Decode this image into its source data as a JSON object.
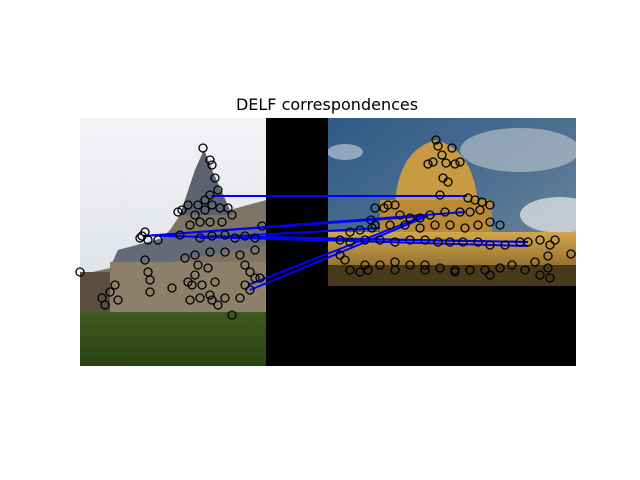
{
  "chart_data": {
    "type": "image",
    "title": "DELF correspondences",
    "axis": "off",
    "images": [
      {
        "name": "left",
        "subject": "gothic stone building with tall pointed roof, overcast sky, lawn in front"
      },
      {
        "name": "right",
        "subject": "domed library rotunda lit warm yellow under blue sky with clouds"
      }
    ],
    "line_color": "#0000ff",
    "keypoint_color": "#000000",
    "keypoints_left": [
      [
        203,
        148
      ],
      [
        210,
        160
      ],
      [
        212,
        165
      ],
      [
        215,
        178
      ],
      [
        218,
        190
      ],
      [
        210,
        195
      ],
      [
        205,
        200
      ],
      [
        198,
        205
      ],
      [
        188,
        205
      ],
      [
        182,
        210
      ],
      [
        178,
        212
      ],
      [
        195,
        215
      ],
      [
        205,
        210
      ],
      [
        212,
        205
      ],
      [
        220,
        208
      ],
      [
        228,
        208
      ],
      [
        232,
        215
      ],
      [
        222,
        222
      ],
      [
        210,
        222
      ],
      [
        200,
        222
      ],
      [
        190,
        225
      ],
      [
        145,
        232
      ],
      [
        142,
        236
      ],
      [
        140,
        238
      ],
      [
        148,
        240
      ],
      [
        158,
        240
      ],
      [
        180,
        235
      ],
      [
        200,
        238
      ],
      [
        212,
        236
      ],
      [
        225,
        235
      ],
      [
        235,
        238
      ],
      [
        245,
        236
      ],
      [
        255,
        238
      ],
      [
        262,
        226
      ],
      [
        255,
        250
      ],
      [
        240,
        255
      ],
      [
        225,
        252
      ],
      [
        210,
        252
      ],
      [
        195,
        255
      ],
      [
        185,
        258
      ],
      [
        145,
        260
      ],
      [
        148,
        272
      ],
      [
        150,
        280
      ],
      [
        115,
        285
      ],
      [
        110,
        292
      ],
      [
        118,
        300
      ],
      [
        102,
        298
      ],
      [
        105,
        305
      ],
      [
        80,
        272
      ],
      [
        150,
        292
      ],
      [
        172,
        288
      ],
      [
        188,
        282
      ],
      [
        192,
        285
      ],
      [
        202,
        285
      ],
      [
        215,
        282
      ],
      [
        210,
        295
      ],
      [
        200,
        298
      ],
      [
        212,
        300
      ],
      [
        225,
        298
      ],
      [
        218,
        305
      ],
      [
        232,
        315
      ],
      [
        190,
        300
      ],
      [
        245,
        265
      ],
      [
        250,
        272
      ],
      [
        255,
        278
      ],
      [
        260,
        278
      ],
      [
        245,
        285
      ],
      [
        250,
        290
      ],
      [
        240,
        298
      ],
      [
        208,
        268
      ],
      [
        198,
        265
      ],
      [
        195,
        275
      ]
    ],
    "keypoints_right": [
      [
        436,
        140
      ],
      [
        438,
        146
      ],
      [
        452,
        148
      ],
      [
        442,
        155
      ],
      [
        433,
        162
      ],
      [
        428,
        164
      ],
      [
        446,
        163
      ],
      [
        455,
        164
      ],
      [
        460,
        162
      ],
      [
        443,
        178
      ],
      [
        448,
        182
      ],
      [
        440,
        195
      ],
      [
        468,
        198
      ],
      [
        475,
        200
      ],
      [
        482,
        202
      ],
      [
        490,
        205
      ],
      [
        480,
        210
      ],
      [
        470,
        212
      ],
      [
        460,
        212
      ],
      [
        445,
        212
      ],
      [
        430,
        215
      ],
      [
        420,
        218
      ],
      [
        410,
        218
      ],
      [
        400,
        215
      ],
      [
        395,
        205
      ],
      [
        388,
        205
      ],
      [
        384,
        208
      ],
      [
        375,
        208
      ],
      [
        371,
        220
      ],
      [
        375,
        225
      ],
      [
        390,
        225
      ],
      [
        405,
        225
      ],
      [
        420,
        228
      ],
      [
        435,
        225
      ],
      [
        450,
        225
      ],
      [
        465,
        228
      ],
      [
        478,
        225
      ],
      [
        490,
        222
      ],
      [
        500,
        225
      ],
      [
        372,
        228
      ],
      [
        360,
        230
      ],
      [
        350,
        232
      ],
      [
        340,
        240
      ],
      [
        350,
        242
      ],
      [
        365,
        240
      ],
      [
        380,
        240
      ],
      [
        395,
        242
      ],
      [
        410,
        240
      ],
      [
        425,
        240
      ],
      [
        438,
        242
      ],
      [
        450,
        242
      ],
      [
        463,
        242
      ],
      [
        478,
        242
      ],
      [
        490,
        245
      ],
      [
        505,
        245
      ],
      [
        520,
        242
      ],
      [
        528,
        242
      ],
      [
        540,
        240
      ],
      [
        550,
        245
      ],
      [
        555,
        240
      ],
      [
        571,
        254
      ],
      [
        548,
        256
      ],
      [
        535,
        262
      ],
      [
        512,
        265
      ],
      [
        500,
        268
      ],
      [
        485,
        270
      ],
      [
        470,
        270
      ],
      [
        455,
        270
      ],
      [
        440,
        268
      ],
      [
        425,
        265
      ],
      [
        410,
        265
      ],
      [
        395,
        262
      ],
      [
        380,
        265
      ],
      [
        365,
        265
      ],
      [
        350,
        270
      ],
      [
        360,
        272
      ],
      [
        340,
        255
      ],
      [
        345,
        260
      ],
      [
        540,
        275
      ],
      [
        550,
        278
      ],
      [
        525,
        270
      ],
      [
        490,
        275
      ],
      [
        455,
        272
      ],
      [
        425,
        270
      ],
      [
        395,
        270
      ],
      [
        368,
        270
      ],
      [
        548,
        268
      ]
    ],
    "matches": [
      [
        [
          211,
          196
        ],
        [
          467,
          196
        ]
      ],
      [
        [
          144,
          236
        ],
        [
          465,
          212
        ]
      ],
      [
        [
          144,
          236
        ],
        [
          428,
          216
        ]
      ],
      [
        [
          200,
          238
        ],
        [
          380,
          228
        ]
      ],
      [
        [
          210,
          236
        ],
        [
          528,
          242
        ]
      ],
      [
        [
          170,
          236
        ],
        [
          528,
          246
        ]
      ],
      [
        [
          160,
          236
        ],
        [
          528,
          242
        ]
      ],
      [
        [
          250,
          290
        ],
        [
          428,
          216
        ]
      ],
      [
        [
          248,
          285
        ],
        [
          424,
          216
        ]
      ]
    ]
  }
}
